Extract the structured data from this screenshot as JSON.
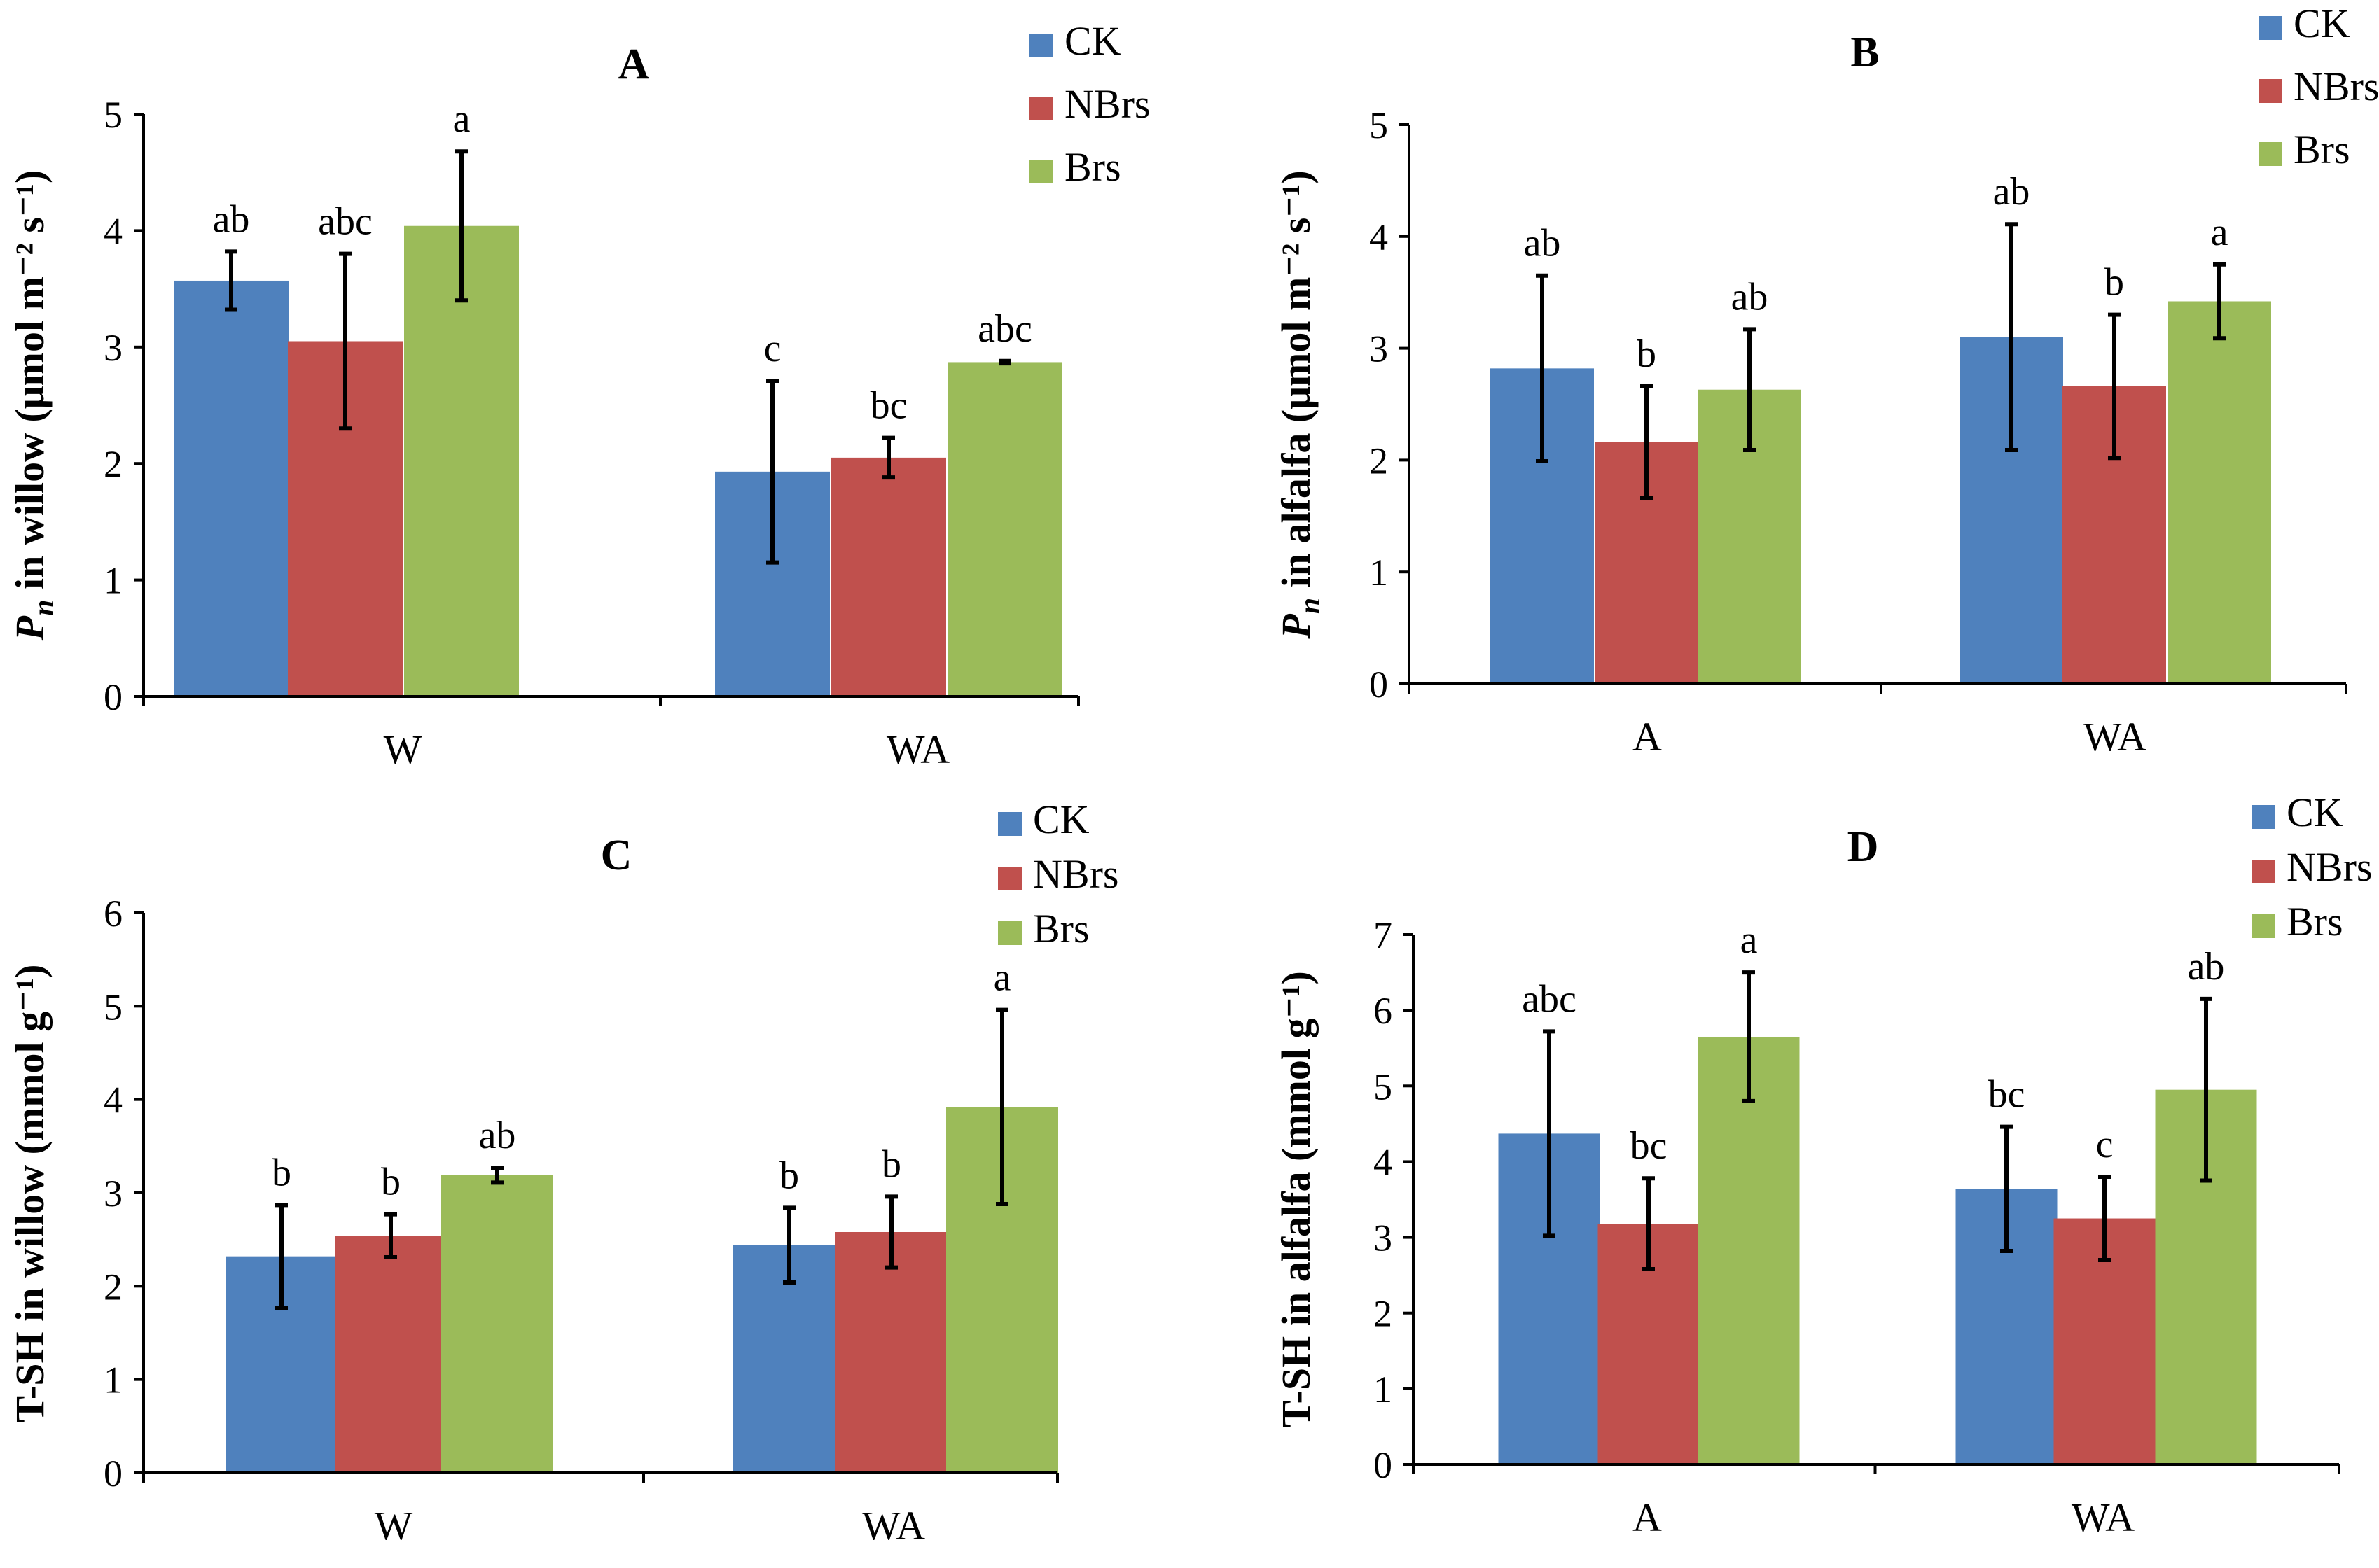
{
  "chart_data": [
    {
      "type": "bar",
      "panel": "A",
      "title": "A",
      "ylabel_italic": "P",
      "ylabel_sub": "n",
      "ylabel_rest": " in willow (μmol m⁻² s⁻¹)",
      "xlabel": "",
      "ylim": [
        0,
        5
      ],
      "yticks": [
        0,
        1,
        2,
        3,
        4,
        5
      ],
      "categories": [
        "W",
        "WA"
      ],
      "legend_position": "top-right",
      "series": [
        {
          "name": "CK",
          "color": "#4F81BD",
          "values": [
            3.57,
            1.93
          ],
          "errors": [
            0.25,
            0.78
          ],
          "letters": [
            "ab",
            "c"
          ]
        },
        {
          "name": "NBrs",
          "color": "#C0504D",
          "values": [
            3.05,
            2.05
          ],
          "errors": [
            0.75,
            0.17
          ],
          "letters": [
            "abc",
            "bc"
          ]
        },
        {
          "name": "Brs",
          "color": "#9BBB59",
          "values": [
            4.04,
            2.87
          ],
          "errors": [
            0.64,
            0.01
          ],
          "letters": [
            "a",
            "abc"
          ]
        }
      ]
    },
    {
      "type": "bar",
      "panel": "B",
      "title": "B",
      "ylabel_italic": "P",
      "ylabel_sub": "n",
      "ylabel_rest": " in alfalfa (μmol m⁻² s⁻¹)",
      "xlabel": "",
      "ylim": [
        0,
        5
      ],
      "yticks": [
        0,
        1,
        2,
        3,
        4,
        5
      ],
      "categories": [
        "A",
        "WA"
      ],
      "legend_position": "top-right",
      "series": [
        {
          "name": "CK",
          "color": "#4F81BD",
          "values": [
            2.82,
            3.1
          ],
          "errors": [
            0.83,
            1.01
          ],
          "letters": [
            "ab",
            "ab"
          ]
        },
        {
          "name": "NBrs",
          "color": "#C0504D",
          "values": [
            2.16,
            2.66
          ],
          "errors": [
            0.5,
            0.64
          ],
          "letters": [
            "b",
            "b"
          ]
        },
        {
          "name": "Brs",
          "color": "#9BBB59",
          "values": [
            2.63,
            3.42
          ],
          "errors": [
            0.54,
            0.33
          ],
          "letters": [
            "ab",
            "a"
          ]
        }
      ]
    },
    {
      "type": "bar",
      "panel": "C",
      "title": "C",
      "ylabel_italic": "",
      "ylabel_sub": "",
      "ylabel_rest": "T-SH in willow (mmol g⁻¹)",
      "xlabel": "",
      "ylim": [
        0,
        6
      ],
      "yticks": [
        0,
        1,
        2,
        3,
        4,
        5,
        6
      ],
      "categories": [
        "W",
        "WA"
      ],
      "legend_position": "top-right",
      "series": [
        {
          "name": "CK",
          "color": "#4F81BD",
          "values": [
            2.32,
            2.44
          ],
          "errors": [
            0.55,
            0.4
          ],
          "letters": [
            "b",
            "b"
          ]
        },
        {
          "name": "NBrs",
          "color": "#C0504D",
          "values": [
            2.54,
            2.58
          ],
          "errors": [
            0.23,
            0.38
          ],
          "letters": [
            "b",
            "b"
          ]
        },
        {
          "name": "Brs",
          "color": "#9BBB59",
          "values": [
            3.19,
            3.92
          ],
          "errors": [
            0.08,
            1.04
          ],
          "letters": [
            "ab",
            "a"
          ]
        }
      ]
    },
    {
      "type": "bar",
      "panel": "D",
      "title": "D",
      "ylabel_italic": "",
      "ylabel_sub": "",
      "ylabel_rest": "T-SH in alfalfa (mmol g⁻¹)",
      "xlabel": "",
      "ylim": [
        0,
        7
      ],
      "yticks": [
        0,
        1,
        2,
        3,
        4,
        5,
        6,
        7
      ],
      "categories": [
        "A",
        "WA"
      ],
      "legend_position": "top-right",
      "series": [
        {
          "name": "CK",
          "color": "#4F81BD",
          "values": [
            4.37,
            3.64
          ],
          "errors": [
            1.35,
            0.82
          ],
          "letters": [
            "abc",
            "bc"
          ]
        },
        {
          "name": "NBrs",
          "color": "#C0504D",
          "values": [
            3.18,
            3.25
          ],
          "errors": [
            0.6,
            0.55
          ],
          "letters": [
            "bc",
            "c"
          ]
        },
        {
          "name": "Brs",
          "color": "#9BBB59",
          "values": [
            5.65,
            4.95
          ],
          "errors": [
            0.85,
            1.2
          ],
          "letters": [
            "a",
            "ab"
          ]
        }
      ]
    }
  ]
}
